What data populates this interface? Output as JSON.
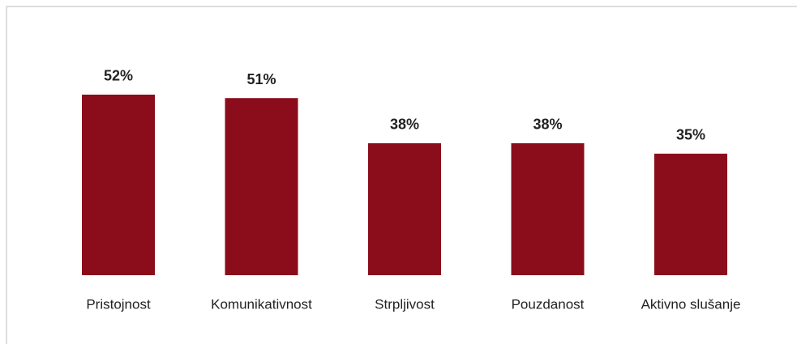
{
  "chart_data": {
    "type": "bar",
    "categories": [
      "Pristojnost",
      "Komunikativnost",
      "Strpljivost",
      "Pouzdanost",
      "Aktivno slušanje"
    ],
    "values": [
      52,
      51,
      38,
      38,
      35
    ],
    "value_labels": [
      "52%",
      "51%",
      "38%",
      "38%",
      "35%"
    ],
    "color": "#8b0c1a"
  }
}
